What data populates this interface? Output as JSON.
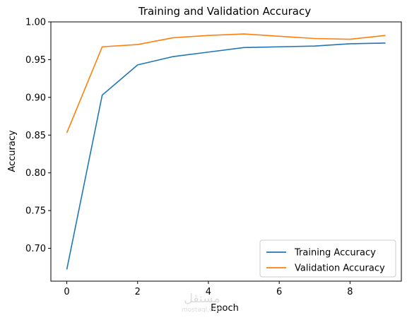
{
  "chart_data": {
    "type": "line",
    "title": "Training and Validation Accuracy",
    "xlabel": "Epoch",
    "ylabel": "Accuracy",
    "xlim": [
      -0.45,
      9.45
    ],
    "ylim": [
      0.6565,
      1.0
    ],
    "xticks": [
      0,
      2,
      4,
      6,
      8
    ],
    "yticks": [
      0.7,
      0.75,
      0.8,
      0.85,
      0.9,
      0.95,
      1.0
    ],
    "ytick_labels": [
      "0.70",
      "0.75",
      "0.80",
      "0.85",
      "0.90",
      "0.95",
      "1.00"
    ],
    "grid": false,
    "legend_position": "lower-right",
    "x": [
      0,
      1,
      2,
      3,
      4,
      5,
      6,
      7,
      8,
      9
    ],
    "series": [
      {
        "name": "Training Accuracy",
        "color": "#1f77b4",
        "values": [
          0.672,
          0.903,
          0.943,
          0.954,
          0.96,
          0.966,
          0.967,
          0.968,
          0.971,
          0.972
        ]
      },
      {
        "name": "Validation Accuracy",
        "color": "#ff7f0e",
        "values": [
          0.853,
          0.967,
          0.97,
          0.979,
          0.982,
          0.984,
          0.981,
          0.978,
          0.977,
          0.982
        ]
      }
    ]
  },
  "watermark": {
    "main": "مستقل",
    "sub": "mostaql.com"
  }
}
